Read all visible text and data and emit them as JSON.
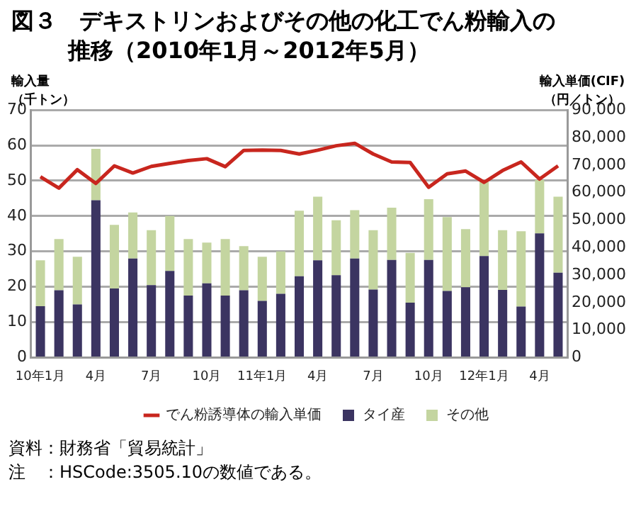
{
  "chart_data": {
    "type": "bar",
    "title": "図３　デキストリンおよびその他の化工でん粉輸入の推移（2010年1月～2012年5月）",
    "ylabel": "輸入量（千トン）",
    "y2label": "輸入単価(CIF)（円／トン）",
    "categories": [
      "10年1月",
      null,
      null,
      "4月",
      null,
      null,
      "7月",
      null,
      null,
      "10月",
      null,
      null,
      "11年1月",
      null,
      null,
      "4月",
      null,
      null,
      "7月",
      null,
      null,
      "10月",
      null,
      null,
      "12年1月",
      null,
      null,
      "4月",
      null
    ],
    "stacked": true,
    "series": [
      {
        "name": "タイ産",
        "color": "#3b3461",
        "values": [
          14.5,
          19,
          15,
          44.5,
          19.5,
          28,
          20.5,
          24.5,
          17.5,
          21,
          17.5,
          19,
          16,
          18,
          23,
          27.5,
          23.3,
          28,
          19.2,
          27.6,
          15.5,
          27.6,
          18.8,
          19.9,
          28.7,
          19.1,
          14.4,
          35.1,
          24
        ]
      },
      {
        "name": "その他",
        "color": "#c4d5a0",
        "values": [
          13,
          14.5,
          13.5,
          14.5,
          18,
          13,
          15.5,
          15.5,
          16,
          11.5,
          16,
          12.5,
          12.5,
          12,
          18.5,
          18,
          15.5,
          13.7,
          16.8,
          14.8,
          14.1,
          17.2,
          20.9,
          16.4,
          21.1,
          16.9,
          21.3,
          15.1,
          21.5
        ]
      },
      {
        "name": "でん粉誘導体の輸入単価",
        "type": "line",
        "axis": "y2",
        "color": "#c8261e",
        "values": [
          65700,
          61600,
          68300,
          63300,
          69700,
          67100,
          69500,
          70600,
          71600,
          72300,
          69400,
          75300,
          75400,
          75300,
          74000,
          75400,
          77000,
          77900,
          74000,
          71100,
          70900,
          61900,
          66800,
          67800,
          63700,
          68000,
          71100,
          64900,
          69700
        ]
      }
    ],
    "ylim": [
      0,
      70
    ],
    "yticks": [
      0,
      10,
      20,
      30,
      40,
      50,
      60,
      70
    ],
    "y2lim": [
      0,
      90000
    ],
    "y2ticks": [
      0,
      {
        "value": 10000,
        "label": "10,000"
      },
      {
        "value": 20000,
        "label": "20,000"
      },
      {
        "value": 30000,
        "label": "30,000"
      },
      {
        "value": 40000,
        "label": "40,000"
      },
      {
        "value": 50000,
        "label": "50,000"
      },
      {
        "value": 60000,
        "label": "60,000"
      },
      {
        "value": 70000,
        "label": "70,000"
      },
      {
        "value": 80000,
        "label": "80,000"
      },
      {
        "value": 90000,
        "label": "90,000"
      }
    ],
    "grid": "y",
    "legend": "bottom",
    "marker": "none",
    "annotations": [
      "資料：財務省「貿易統計」",
      "注　：HSCode:3505.10の数値である。"
    ]
  }
}
